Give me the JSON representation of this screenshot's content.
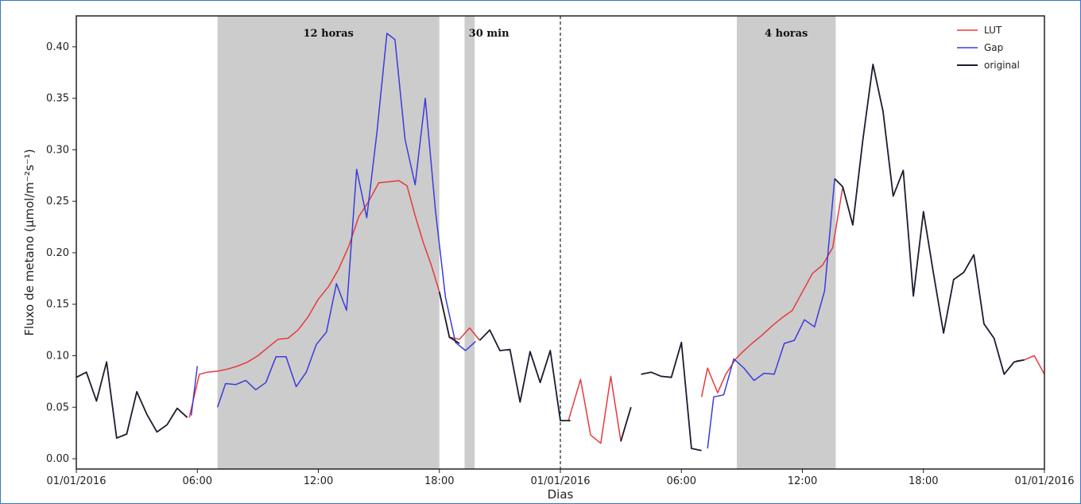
{
  "chart_data": {
    "type": "line",
    "title": "",
    "xlabel": "Dias",
    "ylabel": "Fluxo de metano (μmol/m⁻²s⁻¹)",
    "x_ticks": [
      "01/01/2016",
      "06:00",
      "12:00",
      "18:00",
      "01/01/2016",
      "06:00",
      "12:00",
      "18:00",
      "01/01/2016"
    ],
    "y_ticks": [
      "0.00",
      "0.05",
      "0.10",
      "0.15",
      "0.20",
      "0.25",
      "0.30",
      "0.35",
      "0.40"
    ],
    "ylim": [
      -0.01,
      0.43
    ],
    "xlim_hours": [
      0,
      48
    ],
    "x_unit": "hours",
    "grid": false,
    "legend_position": "top-right",
    "day_divider_hour": 24,
    "gaps": [
      {
        "label": "12 horas",
        "start": 7,
        "end": 18
      },
      {
        "label": "30 min",
        "start": 19.25,
        "end": 19.75
      },
      {
        "label": "4 horas",
        "start": 32.75,
        "end": 37.65
      }
    ],
    "series": [
      {
        "name": "LUT",
        "color": "#e8393c",
        "segments": [
          [
            [
              5.6,
              0.04
            ],
            [
              6.1,
              0.082
            ],
            [
              6.5,
              0.084
            ],
            [
              7.0,
              0.085
            ],
            [
              7.5,
              0.087
            ],
            [
              8.0,
              0.09
            ],
            [
              8.5,
              0.094
            ],
            [
              9.0,
              0.1
            ],
            [
              9.5,
              0.108
            ],
            [
              10.0,
              0.116
            ],
            [
              10.5,
              0.117
            ],
            [
              11.0,
              0.125
            ],
            [
              11.5,
              0.138
            ],
            [
              12.0,
              0.155
            ],
            [
              12.5,
              0.167
            ],
            [
              13.0,
              0.184
            ],
            [
              13.5,
              0.206
            ],
            [
              14.0,
              0.235
            ],
            [
              14.5,
              0.25
            ],
            [
              15.0,
              0.268
            ],
            [
              15.5,
              0.269
            ],
            [
              16.0,
              0.27
            ],
            [
              16.4,
              0.265
            ],
            [
              16.8,
              0.236
            ],
            [
              17.2,
              0.21
            ],
            [
              17.6,
              0.188
            ],
            [
              18.0,
              0.162
            ],
            [
              18.5,
              0.118
            ],
            [
              19.0,
              0.116
            ],
            [
              19.5,
              0.127
            ],
            [
              20.0,
              0.115
            ]
          ],
          [
            [
              24.4,
              0.037
            ],
            [
              25.0,
              0.077
            ],
            [
              25.5,
              0.023
            ],
            [
              26.0,
              0.015
            ],
            [
              26.5,
              0.08
            ],
            [
              27.0,
              0.017
            ],
            [
              27.5,
              0.05
            ]
          ],
          [
            [
              31.0,
              0.06
            ],
            [
              31.3,
              0.088
            ],
            [
              31.8,
              0.064
            ],
            [
              32.2,
              0.082
            ],
            [
              32.7,
              0.097
            ],
            [
              33.0,
              0.103
            ],
            [
              33.5,
              0.112
            ],
            [
              34.0,
              0.12
            ],
            [
              34.5,
              0.129
            ],
            [
              35.0,
              0.137
            ],
            [
              35.5,
              0.144
            ],
            [
              36.0,
              0.162
            ],
            [
              36.5,
              0.18
            ],
            [
              37.0,
              0.188
            ],
            [
              37.5,
              0.205
            ],
            [
              38.0,
              0.264
            ]
          ],
          [
            [
              46.6,
              0.095
            ],
            [
              47.0,
              0.096
            ],
            [
              47.5,
              0.1
            ],
            [
              48.0,
              0.082
            ]
          ]
        ]
      },
      {
        "name": "Gap",
        "color": "#3b3bdc",
        "segments": [
          [
            [
              5.7,
              0.042
            ],
            [
              6.0,
              0.09
            ]
          ],
          [
            [
              7.0,
              0.05
            ],
            [
              7.4,
              0.073
            ],
            [
              7.9,
              0.072
            ],
            [
              8.4,
              0.076
            ],
            [
              8.9,
              0.067
            ],
            [
              9.4,
              0.074
            ],
            [
              9.9,
              0.099
            ],
            [
              10.4,
              0.099
            ],
            [
              10.9,
              0.07
            ],
            [
              11.4,
              0.084
            ],
            [
              11.9,
              0.111
            ],
            [
              12.4,
              0.123
            ],
            [
              12.9,
              0.17
            ],
            [
              13.4,
              0.144
            ],
            [
              13.9,
              0.281
            ],
            [
              14.4,
              0.234
            ],
            [
              14.9,
              0.316
            ],
            [
              15.4,
              0.413
            ],
            [
              15.8,
              0.407
            ],
            [
              16.3,
              0.31
            ],
            [
              16.8,
              0.266
            ],
            [
              17.3,
              0.35
            ],
            [
              17.8,
              0.242
            ],
            [
              18.3,
              0.157
            ],
            [
              18.8,
              0.113
            ],
            [
              19.3,
              0.105
            ],
            [
              19.8,
              0.114
            ]
          ],
          [
            [
              31.3,
              0.01
            ],
            [
              31.6,
              0.06
            ],
            [
              32.1,
              0.062
            ],
            [
              32.6,
              0.097
            ],
            [
              33.1,
              0.088
            ],
            [
              33.6,
              0.076
            ],
            [
              34.1,
              0.083
            ],
            [
              34.6,
              0.082
            ],
            [
              35.1,
              0.112
            ],
            [
              35.6,
              0.115
            ],
            [
              36.1,
              0.135
            ],
            [
              36.6,
              0.128
            ],
            [
              37.1,
              0.163
            ],
            [
              37.6,
              0.272
            ]
          ]
        ]
      },
      {
        "name": "original",
        "color": "#1c1c2e",
        "segments": [
          [
            [
              0.0,
              0.079
            ],
            [
              0.5,
              0.084
            ],
            [
              1.0,
              0.056
            ],
            [
              1.5,
              0.094
            ],
            [
              2.0,
              0.02
            ],
            [
              2.5,
              0.024
            ],
            [
              3.0,
              0.065
            ],
            [
              3.5,
              0.043
            ],
            [
              4.0,
              0.026
            ],
            [
              4.5,
              0.033
            ],
            [
              5.0,
              0.049
            ],
            [
              5.5,
              0.04
            ]
          ],
          [
            [
              18.0,
              0.162
            ],
            [
              18.5,
              0.118
            ],
            [
              19.0,
              0.112
            ]
          ],
          [
            [
              20.0,
              0.115
            ],
            [
              20.5,
              0.125
            ],
            [
              21.0,
              0.105
            ],
            [
              21.5,
              0.106
            ],
            [
              22.0,
              0.055
            ],
            [
              22.5,
              0.104
            ],
            [
              23.0,
              0.074
            ],
            [
              23.5,
              0.105
            ],
            [
              24.0,
              0.037
            ],
            [
              24.5,
              0.037
            ]
          ],
          [
            [
              27.0,
              0.017
            ],
            [
              27.5,
              0.05
            ]
          ],
          [
            [
              28.0,
              0.082
            ],
            [
              28.5,
              0.084
            ],
            [
              29.0,
              0.08
            ],
            [
              29.5,
              0.079
            ],
            [
              30.0,
              0.113
            ],
            [
              30.5,
              0.01
            ],
            [
              31.0,
              0.008
            ]
          ],
          [
            [
              37.6,
              0.272
            ],
            [
              38.0,
              0.264
            ],
            [
              38.5,
              0.227
            ],
            [
              39.0,
              0.31
            ],
            [
              39.5,
              0.383
            ],
            [
              40.0,
              0.337
            ],
            [
              40.5,
              0.255
            ],
            [
              41.0,
              0.28
            ],
            [
              41.5,
              0.158
            ],
            [
              42.0,
              0.24
            ],
            [
              42.5,
              0.18
            ],
            [
              43.0,
              0.122
            ],
            [
              43.5,
              0.174
            ],
            [
              44.0,
              0.181
            ],
            [
              44.5,
              0.198
            ],
            [
              45.0,
              0.131
            ],
            [
              45.5,
              0.117
            ],
            [
              46.0,
              0.082
            ],
            [
              46.5,
              0.094
            ],
            [
              47.0,
              0.096
            ]
          ]
        ]
      }
    ]
  }
}
